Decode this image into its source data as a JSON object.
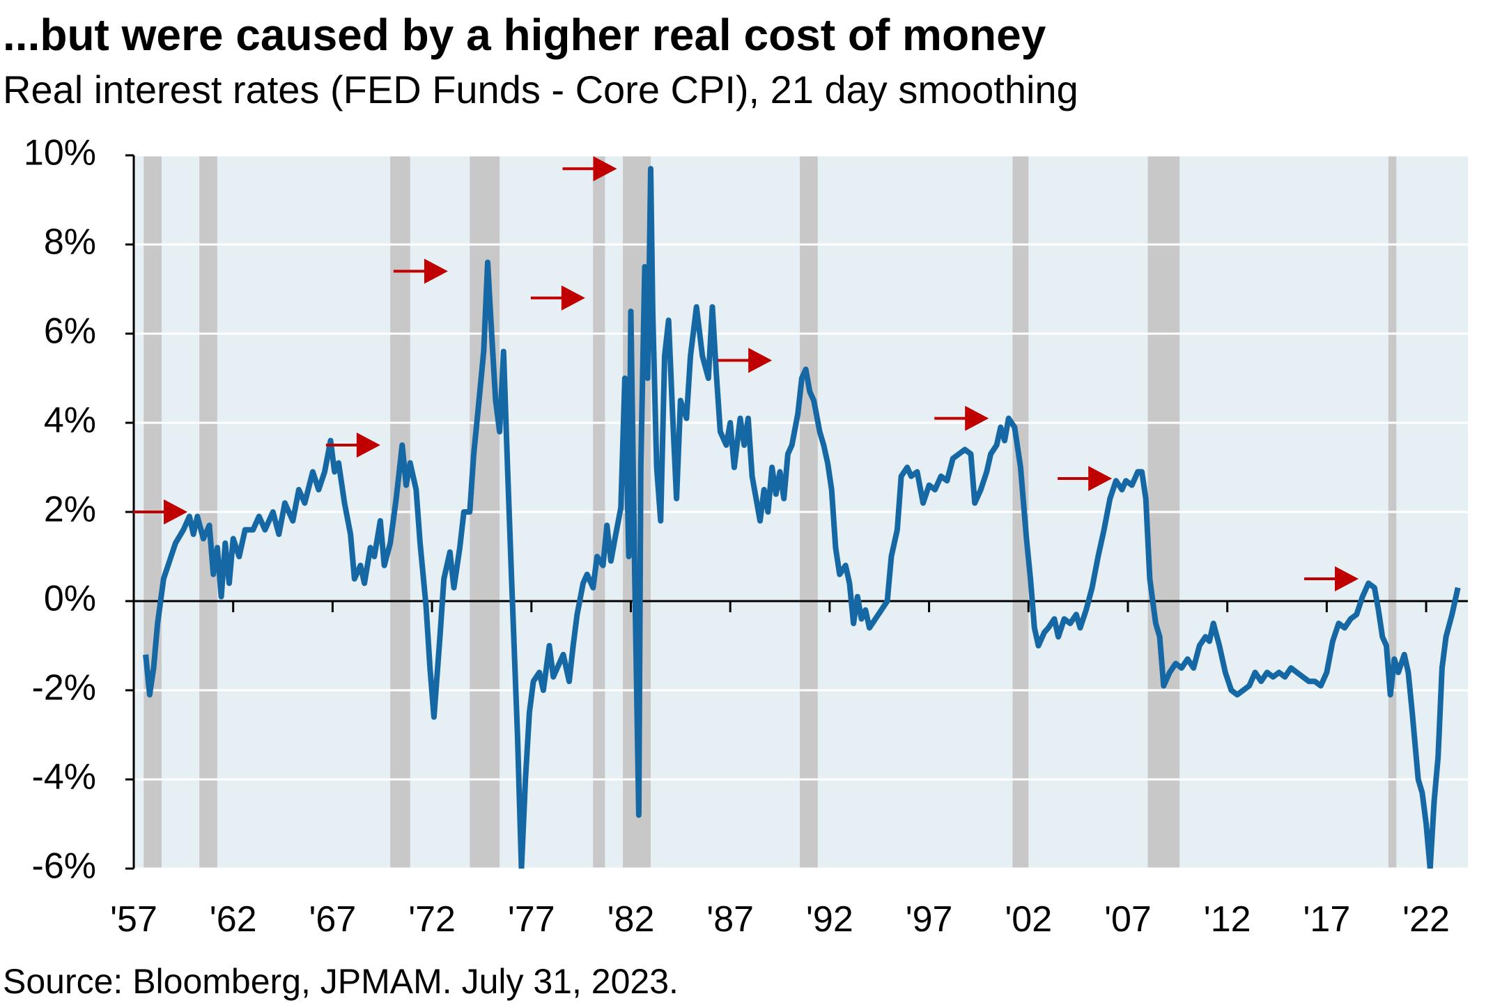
{
  "chart_data": {
    "type": "line",
    "title": "...but were caused by a higher real cost of money",
    "subtitle": "Real interest rates (FED Funds - Core CPI), 21 day smoothing",
    "source": "Source: Bloomberg, JPMAM. July 31, 2023.",
    "xlim": [
      1957,
      2024.1
    ],
    "ylim": [
      -6,
      10
    ],
    "xticks": [
      {
        "value": 1957,
        "label": "'57"
      },
      {
        "value": 1962,
        "label": "'62"
      },
      {
        "value": 1967,
        "label": "'67"
      },
      {
        "value": 1972,
        "label": "'72"
      },
      {
        "value": 1977,
        "label": "'77"
      },
      {
        "value": 1982,
        "label": "'82"
      },
      {
        "value": 1987,
        "label": "'87"
      },
      {
        "value": 1992,
        "label": "'92"
      },
      {
        "value": 1997,
        "label": "'97"
      },
      {
        "value": 2002,
        "label": "'02"
      },
      {
        "value": 2007,
        "label": "'07"
      },
      {
        "value": 2012,
        "label": "'12"
      },
      {
        "value": 2017,
        "label": "'17"
      },
      {
        "value": 2022,
        "label": "'22"
      }
    ],
    "yticks": [
      {
        "value": -6,
        "label": "-6%"
      },
      {
        "value": -4,
        "label": "-4%"
      },
      {
        "value": -2,
        "label": "-2%"
      },
      {
        "value": 0,
        "label": "0%"
      },
      {
        "value": 2,
        "label": "2%"
      },
      {
        "value": 4,
        "label": "4%"
      },
      {
        "value": 6,
        "label": "6%"
      },
      {
        "value": 8,
        "label": "8%"
      },
      {
        "value": 10,
        "label": "10%"
      }
    ],
    "grid": true,
    "background_color": "#e6f0f4",
    "recession_color": "#c8c8c8",
    "recessions": [
      [
        1957.5,
        1958.4
      ],
      [
        1960.3,
        1961.2
      ],
      [
        1969.9,
        1970.9
      ],
      [
        1973.9,
        1975.4
      ],
      [
        1980.1,
        1980.7
      ],
      [
        1981.6,
        1983.0
      ],
      [
        1990.5,
        1991.4
      ],
      [
        2001.2,
        2002.0
      ],
      [
        2008.0,
        2009.6
      ],
      [
        2020.1,
        2020.5
      ]
    ],
    "peak_markers": {
      "color": "#c00000",
      "x": [
        1959.7,
        1969.4,
        1972.8,
        1979.7,
        1981.3,
        1989.1,
        2000.0,
        2006.2,
        2018.6
      ],
      "y": [
        2.0,
        3.5,
        7.4,
        6.8,
        9.7,
        5.4,
        4.1,
        2.75,
        0.5
      ]
    },
    "series": [
      {
        "color": "#1668a4",
        "x": [
          1957.6,
          1957.8,
          1958.0,
          1958.2,
          1958.5,
          1958.8,
          1959.1,
          1959.5,
          1959.8,
          1960.0,
          1960.2,
          1960.5,
          1960.8,
          1961.0,
          1961.2,
          1961.4,
          1961.6,
          1961.8,
          1962.0,
          1962.3,
          1962.6,
          1963.0,
          1963.3,
          1963.6,
          1964.0,
          1964.3,
          1964.6,
          1965.0,
          1965.3,
          1965.6,
          1966.0,
          1966.3,
          1966.6,
          1966.9,
          1967.1,
          1967.3,
          1967.6,
          1967.9,
          1968.1,
          1968.4,
          1968.6,
          1968.9,
          1969.1,
          1969.4,
          1969.6,
          1969.9,
          1970.2,
          1970.5,
          1970.7,
          1970.9,
          1971.2,
          1971.4,
          1971.7,
          1971.9,
          1972.1,
          1972.4,
          1972.6,
          1972.9,
          1973.1,
          1973.4,
          1973.6,
          1973.9,
          1974.1,
          1974.3,
          1974.6,
          1974.8,
          1975.0,
          1975.2,
          1975.4,
          1975.6,
          1975.8,
          1976.0,
          1976.3,
          1976.5,
          1976.7,
          1976.9,
          1977.1,
          1977.4,
          1977.6,
          1977.9,
          1978.1,
          1978.3,
          1978.6,
          1978.9,
          1979.1,
          1979.3,
          1979.6,
          1979.8,
          1980.1,
          1980.3,
          1980.6,
          1980.8,
          1981.0,
          1981.2,
          1981.5,
          1981.7,
          1981.9,
          1982.0,
          1982.2,
          1982.4,
          1982.5,
          1982.7,
          1982.85,
          1983.0,
          1983.1,
          1983.3,
          1983.5,
          1983.7,
          1983.9,
          1984.1,
          1984.3,
          1984.5,
          1984.8,
          1985.0,
          1985.3,
          1985.6,
          1985.9,
          1986.1,
          1986.3,
          1986.5,
          1986.8,
          1987.0,
          1987.2,
          1987.5,
          1987.7,
          1987.9,
          1988.1,
          1988.3,
          1988.5,
          1988.7,
          1988.9,
          1989.1,
          1989.3,
          1989.5,
          1989.7,
          1989.9,
          1990.1,
          1990.4,
          1990.6,
          1990.8,
          1991.0,
          1991.2,
          1991.5,
          1991.7,
          1991.9,
          1992.1,
          1992.3,
          1992.5,
          1992.8,
          1993.0,
          1993.2,
          1993.4,
          1993.6,
          1993.8,
          1994.0,
          1994.3,
          1994.6,
          1994.9,
          1995.1,
          1995.4,
          1995.6,
          1995.9,
          1996.1,
          1996.4,
          1996.7,
          1997.0,
          1997.3,
          1997.6,
          1997.9,
          1998.2,
          1998.5,
          1998.8,
          1999.1,
          1999.3,
          1999.6,
          1999.9,
          2000.1,
          2000.4,
          2000.6,
          2000.8,
          2001.0,
          2001.3,
          2001.6,
          2001.9,
          2002.1,
          2002.3,
          2002.5,
          2002.8,
          2003.0,
          2003.3,
          2003.5,
          2003.8,
          2004.1,
          2004.4,
          2004.6,
          2004.9,
          2005.2,
          2005.5,
          2005.8,
          2006.1,
          2006.4,
          2006.7,
          2006.9,
          2007.2,
          2007.5,
          2007.7,
          2007.9,
          2008.1,
          2008.4,
          2008.6,
          2008.8,
          2009.1,
          2009.4,
          2009.7,
          2010.0,
          2010.3,
          2010.6,
          2010.9,
          2011.1,
          2011.3,
          2011.6,
          2011.9,
          2012.2,
          2012.5,
          2012.8,
          2013.1,
          2013.4,
          2013.7,
          2014.0,
          2014.3,
          2014.6,
          2014.9,
          2015.2,
          2015.5,
          2015.8,
          2016.1,
          2016.4,
          2016.7,
          2017.0,
          2017.3,
          2017.6,
          2017.9,
          2018.2,
          2018.5,
          2018.8,
          2019.1,
          2019.4,
          2019.6,
          2019.8,
          2020.0,
          2020.2,
          2020.4,
          2020.6,
          2020.9,
          2021.1,
          2021.3,
          2021.6,
          2021.8,
          2022.0,
          2022.2,
          2022.4,
          2022.6,
          2022.8,
          2023.0,
          2023.3,
          2023.6
        ],
        "values": [
          -1.2,
          -2.1,
          -1.5,
          -0.5,
          0.5,
          0.9,
          1.3,
          1.6,
          1.9,
          1.5,
          1.9,
          1.4,
          1.7,
          0.6,
          1.2,
          0.1,
          1.3,
          0.4,
          1.4,
          1.0,
          1.6,
          1.6,
          1.9,
          1.6,
          2.0,
          1.5,
          2.2,
          1.8,
          2.5,
          2.2,
          2.9,
          2.5,
          2.9,
          3.6,
          2.9,
          3.1,
          2.2,
          1.5,
          0.5,
          0.8,
          0.4,
          1.2,
          1.0,
          1.8,
          0.8,
          1.3,
          2.3,
          3.5,
          2.6,
          3.1,
          2.5,
          1.3,
          -0.1,
          -1.5,
          -2.6,
          -0.8,
          0.5,
          1.1,
          0.3,
          1.2,
          2.0,
          2.0,
          3.3,
          4.2,
          5.6,
          7.6,
          6.0,
          4.5,
          3.8,
          5.6,
          3.0,
          0.5,
          -3.0,
          -6.0,
          -4.0,
          -2.5,
          -1.8,
          -1.6,
          -2.0,
          -1.0,
          -1.7,
          -1.5,
          -1.2,
          -1.8,
          -1.0,
          -0.3,
          0.4,
          0.6,
          0.3,
          1.0,
          0.8,
          1.7,
          0.9,
          1.4,
          2.1,
          5.0,
          1.0,
          6.5,
          0.5,
          -4.8,
          3.0,
          7.5,
          5.0,
          9.7,
          6.5,
          3.0,
          1.8,
          5.5,
          6.3,
          4.2,
          2.3,
          4.5,
          4.1,
          5.5,
          6.6,
          5.5,
          5.0,
          6.6,
          5.1,
          3.8,
          3.5,
          4.0,
          3.0,
          4.1,
          3.5,
          4.1,
          2.8,
          2.3,
          1.8,
          2.5,
          2.0,
          3.0,
          2.4,
          2.9,
          2.3,
          3.3,
          3.5,
          4.2,
          5.0,
          5.2,
          4.7,
          4.5,
          3.8,
          3.5,
          3.1,
          2.5,
          1.2,
          0.6,
          0.8,
          0.4,
          -0.5,
          0.1,
          -0.4,
          -0.2,
          -0.6,
          -0.4,
          -0.2,
          0.0,
          1.0,
          1.6,
          2.8,
          3.0,
          2.8,
          2.9,
          2.2,
          2.6,
          2.5,
          2.8,
          2.7,
          3.2,
          3.3,
          3.4,
          3.3,
          2.2,
          2.5,
          2.9,
          3.3,
          3.5,
          3.9,
          3.6,
          4.1,
          3.9,
          3.0,
          1.4,
          0.5,
          -0.6,
          -1.0,
          -0.7,
          -0.6,
          -0.4,
          -0.8,
          -0.4,
          -0.5,
          -0.3,
          -0.6,
          -0.2,
          0.3,
          1.0,
          1.6,
          2.3,
          2.7,
          2.5,
          2.7,
          2.6,
          2.9,
          2.9,
          2.3,
          0.5,
          -0.5,
          -0.8,
          -1.9,
          -1.6,
          -1.4,
          -1.5,
          -1.3,
          -1.5,
          -1.0,
          -0.8,
          -0.9,
          -0.5,
          -1.0,
          -1.6,
          -2.0,
          -2.1,
          -2.0,
          -1.9,
          -1.6,
          -1.8,
          -1.6,
          -1.7,
          -1.6,
          -1.7,
          -1.5,
          -1.6,
          -1.7,
          -1.8,
          -1.8,
          -1.9,
          -1.6,
          -0.9,
          -0.5,
          -0.6,
          -0.4,
          -0.3,
          0.1,
          0.4,
          0.3,
          -0.2,
          -0.8,
          -1.0,
          -2.1,
          -1.3,
          -1.6,
          -1.2,
          -1.6,
          -2.5,
          -4.0,
          -4.3,
          -5.0,
          -6.0,
          -4.5,
          -3.5,
          -1.5,
          -0.8,
          -0.3,
          0.3
        ]
      }
    ]
  }
}
